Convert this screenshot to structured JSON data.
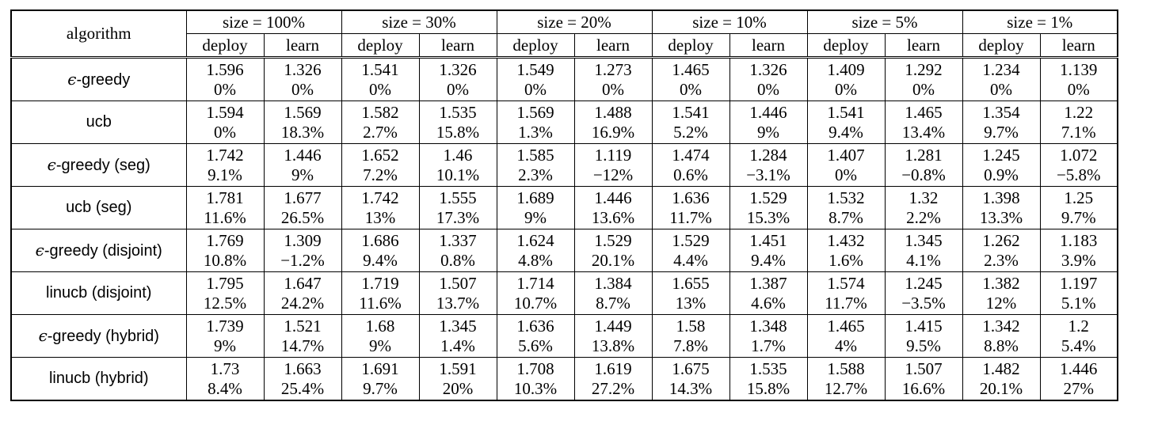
{
  "header": {
    "algorithm_label": "algorithm",
    "groups": [
      "size = 100%",
      "size = 30%",
      "size = 20%",
      "size = 10%",
      "size = 5%",
      "size = 1%"
    ],
    "sub": [
      "deploy",
      "learn"
    ]
  },
  "rows": [
    {
      "eps": "ϵ",
      "name": "-greedy",
      "cells": [
        [
          "1.596",
          "0%"
        ],
        [
          "1.326",
          "0%"
        ],
        [
          "1.541",
          "0%"
        ],
        [
          "1.326",
          "0%"
        ],
        [
          "1.549",
          "0%"
        ],
        [
          "1.273",
          "0%"
        ],
        [
          "1.465",
          "0%"
        ],
        [
          "1.326",
          "0%"
        ],
        [
          "1.409",
          "0%"
        ],
        [
          "1.292",
          "0%"
        ],
        [
          "1.234",
          "0%"
        ],
        [
          "1.139",
          "0%"
        ]
      ]
    },
    {
      "eps": "",
      "name": "ucb",
      "cells": [
        [
          "1.594",
          "0%"
        ],
        [
          "1.569",
          "18.3%"
        ],
        [
          "1.582",
          "2.7%"
        ],
        [
          "1.535",
          "15.8%"
        ],
        [
          "1.569",
          "1.3%"
        ],
        [
          "1.488",
          "16.9%"
        ],
        [
          "1.541",
          "5.2%"
        ],
        [
          "1.446",
          "9%"
        ],
        [
          "1.541",
          "9.4%"
        ],
        [
          "1.465",
          "13.4%"
        ],
        [
          "1.354",
          "9.7%"
        ],
        [
          "1.22",
          "7.1%"
        ]
      ]
    },
    {
      "eps": "ϵ",
      "name": "-greedy (seg)",
      "cells": [
        [
          "1.742",
          "9.1%"
        ],
        [
          "1.446",
          "9%"
        ],
        [
          "1.652",
          "7.2%"
        ],
        [
          "1.46",
          "10.1%"
        ],
        [
          "1.585",
          "2.3%"
        ],
        [
          "1.119",
          "−12%"
        ],
        [
          "1.474",
          "0.6%"
        ],
        [
          "1.284",
          "−3.1%"
        ],
        [
          "1.407",
          "0%"
        ],
        [
          "1.281",
          "−0.8%"
        ],
        [
          "1.245",
          "0.9%"
        ],
        [
          "1.072",
          "−5.8%"
        ]
      ]
    },
    {
      "eps": "",
      "name": "ucb (seg)",
      "cells": [
        [
          "1.781",
          "11.6%"
        ],
        [
          "1.677",
          "26.5%"
        ],
        [
          "1.742",
          "13%"
        ],
        [
          "1.555",
          "17.3%"
        ],
        [
          "1.689",
          "9%"
        ],
        [
          "1.446",
          "13.6%"
        ],
        [
          "1.636",
          "11.7%"
        ],
        [
          "1.529",
          "15.3%"
        ],
        [
          "1.532",
          "8.7%"
        ],
        [
          "1.32",
          "2.2%"
        ],
        [
          "1.398",
          "13.3%"
        ],
        [
          "1.25",
          "9.7%"
        ]
      ]
    },
    {
      "eps": "ϵ",
      "name": "-greedy (disjoint)",
      "cells": [
        [
          "1.769",
          "10.8%"
        ],
        [
          "1.309",
          "−1.2%"
        ],
        [
          "1.686",
          "9.4%"
        ],
        [
          "1.337",
          "0.8%"
        ],
        [
          "1.624",
          "4.8%"
        ],
        [
          "1.529",
          "20.1%"
        ],
        [
          "1.529",
          "4.4%"
        ],
        [
          "1.451",
          "9.4%"
        ],
        [
          "1.432",
          "1.6%"
        ],
        [
          "1.345",
          "4.1%"
        ],
        [
          "1.262",
          "2.3%"
        ],
        [
          "1.183",
          "3.9%"
        ]
      ]
    },
    {
      "eps": "",
      "name": "linucb (disjoint)",
      "cells": [
        [
          "1.795",
          "12.5%"
        ],
        [
          "1.647",
          "24.2%"
        ],
        [
          "1.719",
          "11.6%"
        ],
        [
          "1.507",
          "13.7%"
        ],
        [
          "1.714",
          "10.7%"
        ],
        [
          "1.384",
          "8.7%"
        ],
        [
          "1.655",
          "13%"
        ],
        [
          "1.387",
          "4.6%"
        ],
        [
          "1.574",
          "11.7%"
        ],
        [
          "1.245",
          "−3.5%"
        ],
        [
          "1.382",
          "12%"
        ],
        [
          "1.197",
          "5.1%"
        ]
      ]
    },
    {
      "eps": "ϵ",
      "name": "-greedy (hybrid)",
      "cells": [
        [
          "1.739",
          "9%"
        ],
        [
          "1.521",
          "14.7%"
        ],
        [
          "1.68",
          "9%"
        ],
        [
          "1.345",
          "1.4%"
        ],
        [
          "1.636",
          "5.6%"
        ],
        [
          "1.449",
          "13.8%"
        ],
        [
          "1.58",
          "7.8%"
        ],
        [
          "1.348",
          "1.7%"
        ],
        [
          "1.465",
          "4%"
        ],
        [
          "1.415",
          "9.5%"
        ],
        [
          "1.342",
          "8.8%"
        ],
        [
          "1.2",
          "5.4%"
        ]
      ]
    },
    {
      "eps": "",
      "name": "linucb (hybrid)",
      "cells": [
        [
          "1.73",
          "8.4%"
        ],
        [
          "1.663",
          "25.4%"
        ],
        [
          "1.691",
          "9.7%"
        ],
        [
          "1.591",
          "20%"
        ],
        [
          "1.708",
          "10.3%"
        ],
        [
          "1.619",
          "27.2%"
        ],
        [
          "1.675",
          "14.3%"
        ],
        [
          "1.535",
          "15.8%"
        ],
        [
          "1.588",
          "12.7%"
        ],
        [
          "1.507",
          "16.6%"
        ],
        [
          "1.482",
          "20.1%"
        ],
        [
          "1.446",
          "27%"
        ]
      ]
    }
  ]
}
